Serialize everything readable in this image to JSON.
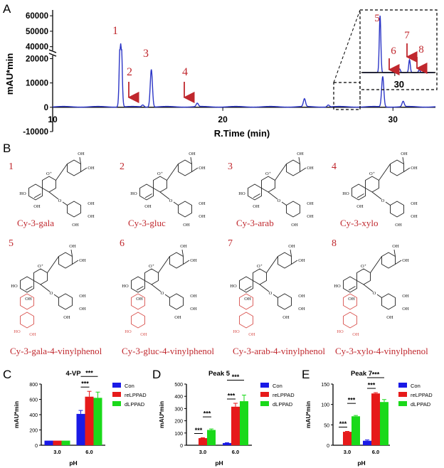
{
  "panels": {
    "A": "A",
    "B": "B",
    "C": "C",
    "D": "D",
    "E": "E"
  },
  "chart_data": [
    {
      "type": "line",
      "panel": "A",
      "ylabel": "mAU*min",
      "xlabel": "R.Time (min)",
      "xlim": [
        10,
        32.5
      ],
      "x_ticks": [
        "10",
        "20",
        "30"
      ],
      "y_ticks_lower": [
        "-10000",
        "0",
        "10000",
        "20000"
      ],
      "y_ticks_upper": [
        "40000",
        "50000",
        "60000"
      ],
      "ylim_lower": [
        -10000,
        21000
      ],
      "ylim_upper": [
        38000,
        61000
      ],
      "axis_break": true,
      "line_color": "#2b35c6",
      "peaks": [
        {
          "label": "1",
          "rt": 14.0,
          "height": 42000
        },
        {
          "label": "2",
          "rt": 15.3,
          "height": 800
        },
        {
          "label": "3",
          "rt": 15.8,
          "height": 15500
        },
        {
          "label": "4",
          "rt": 18.5,
          "height": 1400
        },
        {
          "label": "",
          "rt": 24.8,
          "height": 3200
        },
        {
          "label": "",
          "rt": 26.2,
          "height": 800
        },
        {
          "label": "",
          "rt": 29.4,
          "height": 12500
        },
        {
          "label": "",
          "rt": 30.6,
          "height": 2200
        }
      ],
      "inset": {
        "x_tick": "30",
        "peaks": [
          {
            "label": "5",
            "rt": 29.4
          },
          {
            "label": "6",
            "rt": 30.2
          },
          {
            "label": "7",
            "rt": 30.6
          },
          {
            "label": "8",
            "rt": 31.0
          }
        ]
      },
      "arrow_color": "#c0272d"
    },
    {
      "type": "bar",
      "panel": "C",
      "title": "4-VP",
      "xlabel": "pH",
      "ylabel": "mAU*min",
      "categories": [
        "3.0",
        "6.0"
      ],
      "ylim": [
        0,
        800
      ],
      "y_ticks": [
        "0",
        "200",
        "400",
        "600",
        "800"
      ],
      "legend_position": "right",
      "series": [
        {
          "name": "Con",
          "color": "#1a1ae6",
          "values": [
            60,
            410
          ],
          "errors": [
            0,
            45
          ]
        },
        {
          "name": "reLPPAD",
          "color": "#e61a1a",
          "values": [
            60,
            635
          ],
          "errors": [
            0,
            70
          ]
        },
        {
          "name": "dLPPAD",
          "color": "#1ad91a",
          "values": [
            60,
            620
          ],
          "errors": [
            0,
            75
          ]
        }
      ],
      "significance": [
        {
          "label": "***",
          "category": "6.0",
          "from": 0,
          "to": 1
        },
        {
          "label": "***",
          "category": "6.0",
          "from": 0,
          "to": 2
        }
      ]
    },
    {
      "type": "bar",
      "panel": "D",
      "title": "Peak 5",
      "xlabel": "pH",
      "ylabel": "mAU*min",
      "categories": [
        "3.0",
        "6.0"
      ],
      "ylim": [
        0,
        500
      ],
      "y_ticks": [
        "0",
        "100",
        "200",
        "300",
        "400",
        "500"
      ],
      "legend_position": "right",
      "series": [
        {
          "name": "Con",
          "color": "#1a1ae6",
          "values": [
            0,
            18
          ],
          "errors": [
            0,
            3
          ]
        },
        {
          "name": "reLPPAD",
          "color": "#e61a1a",
          "values": [
            58,
            315
          ],
          "errors": [
            3,
            28
          ]
        },
        {
          "name": "dLPPAD",
          "color": "#1ad91a",
          "values": [
            125,
            360
          ],
          "errors": [
            8,
            50
          ]
        }
      ],
      "significance": [
        {
          "label": "***",
          "category": "3.0",
          "from": 0,
          "to": 1
        },
        {
          "label": "***",
          "category": "3.0",
          "from": 1,
          "to": 2
        },
        {
          "label": "***",
          "category": "6.0",
          "from": 0,
          "to": 1
        },
        {
          "label": "***",
          "category": "6.0",
          "from": 0,
          "to": 2
        }
      ]
    },
    {
      "type": "bar",
      "panel": "E",
      "title": "Peak 7",
      "xlabel": "pH",
      "ylabel": "mAU*min",
      "categories": [
        "3.0",
        "6.0"
      ],
      "ylim": [
        0,
        150
      ],
      "y_ticks": [
        "0",
        "50",
        "100",
        "150"
      ],
      "legend_position": "right",
      "series": [
        {
          "name": "Con",
          "color": "#1a1ae6",
          "values": [
            0,
            11
          ],
          "errors": [
            0,
            2
          ]
        },
        {
          "name": "reLPPAD",
          "color": "#e61a1a",
          "values": [
            33,
            127
          ],
          "errors": [
            1,
            2
          ]
        },
        {
          "name": "dLPPAD",
          "color": "#1ad91a",
          "values": [
            71,
            106
          ],
          "errors": [
            2,
            6
          ]
        }
      ],
      "significance": [
        {
          "label": "***",
          "category": "3.0",
          "from": 0,
          "to": 1
        },
        {
          "label": "***",
          "category": "3.0",
          "from": 1,
          "to": 2
        },
        {
          "label": "***",
          "category": "6.0",
          "from": 0,
          "to": 1
        },
        {
          "label": "***",
          "category": "6.0",
          "from": 0,
          "to": 2
        }
      ]
    }
  ],
  "structures": [
    {
      "number": "1",
      "name": "Cy-3-gala"
    },
    {
      "number": "2",
      "name": "Cy-3-gluc"
    },
    {
      "number": "3",
      "name": "Cy-3-arab"
    },
    {
      "number": "4",
      "name": "Cy-3-xylo"
    },
    {
      "number": "5",
      "name": "Cy-3-gala-4-vinylphenol"
    },
    {
      "number": "6",
      "name": "Cy-3-gluc-4-vinylphenol"
    },
    {
      "number": "7",
      "name": "Cy-3-arab-4-vinylphenol"
    },
    {
      "number": "8",
      "name": "Cy-3-xylo-4-vinylphenol"
    }
  ],
  "atom_labels": {
    "oh": "OH",
    "ho": "HO",
    "o": "O",
    "o_plus": "O⁺"
  }
}
